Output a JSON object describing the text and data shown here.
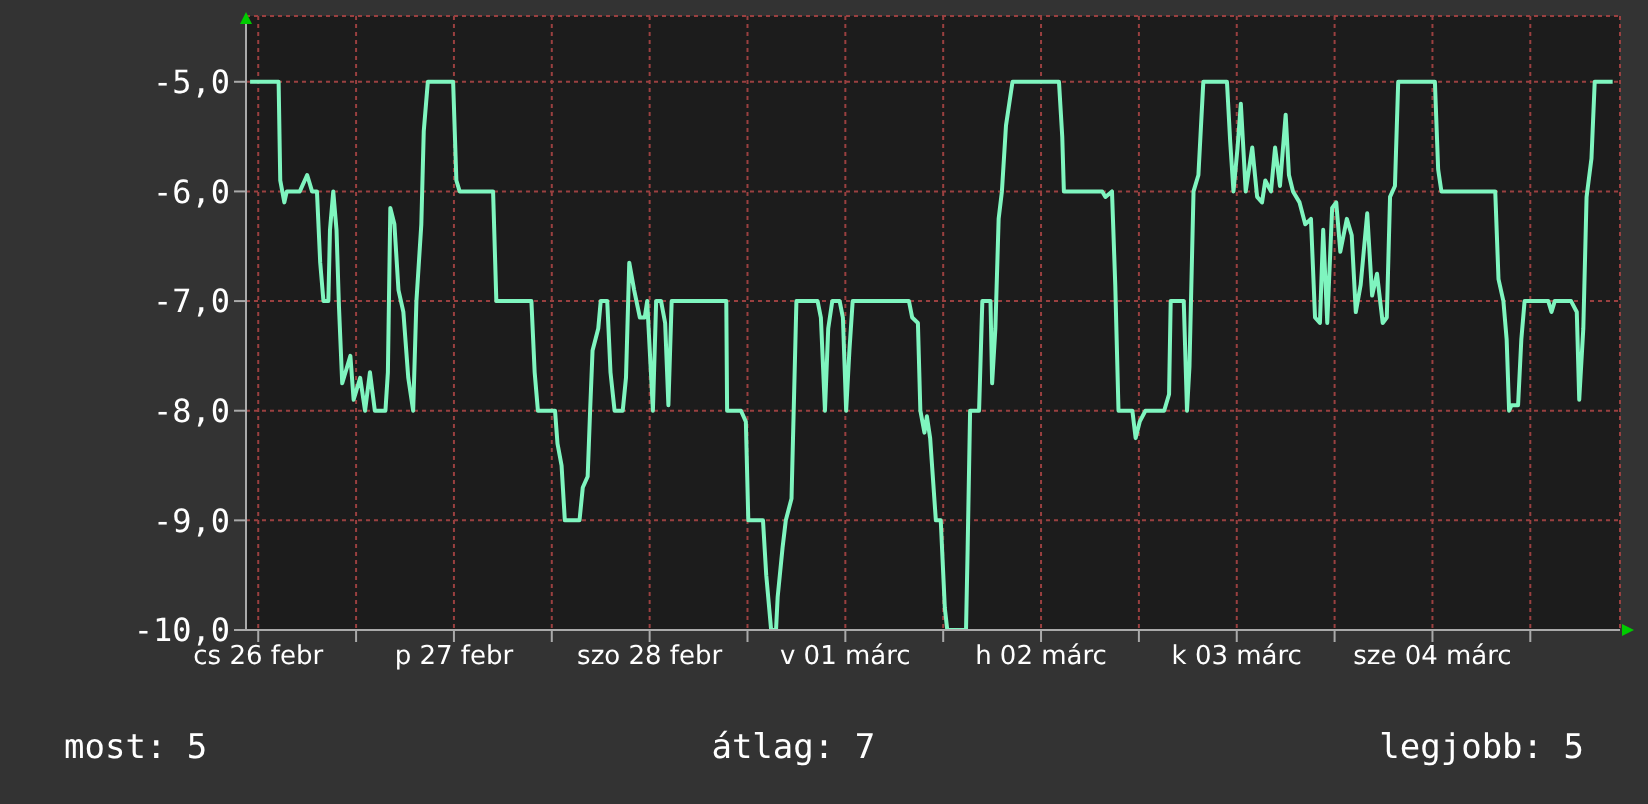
{
  "chart_data": {
    "type": "line",
    "color": "#7ff5bf",
    "grid": true,
    "xlim": [
      "--02-26T10:30",
      "--03-05T11:00"
    ],
    "ylim": [
      -10,
      -4.4
    ],
    "xticks": [
      {
        "value": "--02-26T12:00",
        "label": "cs 26 febr"
      },
      {
        "value": "--02-27T00:00",
        "label": null
      },
      {
        "value": "--02-27T12:00",
        "label": "p 27 febr"
      },
      {
        "value": "--02-28T00:00",
        "label": null
      },
      {
        "value": "--02-28T12:00",
        "label": "szo 28 febr"
      },
      {
        "value": "--03-01T00:00",
        "label": null
      },
      {
        "value": "--03-01T12:00",
        "label": "v 01 márc"
      },
      {
        "value": "--03-02T00:00",
        "label": null
      },
      {
        "value": "--03-02T12:00",
        "label": "h 02 márc"
      },
      {
        "value": "--03-03T00:00",
        "label": null
      },
      {
        "value": "--03-03T12:00",
        "label": "k 03 márc"
      },
      {
        "value": "--03-04T00:00",
        "label": null
      },
      {
        "value": "--03-04T12:00",
        "label": "sze 04 márc"
      },
      {
        "value": "--03-05T00:00",
        "label": null
      }
    ],
    "yticks": [
      {
        "value": -5,
        "label": "-5,0"
      },
      {
        "value": -6,
        "label": "-6,0"
      },
      {
        "value": -7,
        "label": "-7,0"
      },
      {
        "value": -8,
        "label": "-8,0"
      },
      {
        "value": -9,
        "label": "-9,0"
      },
      {
        "value": -10,
        "label": "-10,0"
      }
    ],
    "x": [
      "--02-26T11:00",
      "--02-26T14:30",
      "--02-26T14:42",
      "--02-26T15:12",
      "--02-26T15:30",
      "--02-26T17:06",
      "--02-26T18:00",
      "--02-26T18:36",
      "--02-26T19:12",
      "--02-26T19:36",
      "--02-26T20:00",
      "--02-26T20:36",
      "--02-26T20:48",
      "--02-26T21:12",
      "--02-26T21:36",
      "--02-26T21:54",
      "--02-26T22:18",
      "--02-26T23:18",
      "--02-26T23:42",
      "--02-27T00:30",
      "--02-27T01:06",
      "--02-27T01:42",
      "--02-27T02:18",
      "--02-27T03:36",
      "--02-27T03:54",
      "--02-27T04:12",
      "--02-27T04:42",
      "--02-27T05:12",
      "--02-27T05:48",
      "--02-27T06:24",
      "--02-27T07:00",
      "--02-27T07:24",
      "--02-27T08:00",
      "--02-27T08:18",
      "--02-27T08:48",
      "--02-27T11:54",
      "--02-27T12:18",
      "--02-27T12:42",
      "--02-27T16:48",
      "--02-27T17:12",
      "--02-27T21:30",
      "--02-27T21:54",
      "--02-27T22:18",
      "--02-28T00:24",
      "--02-28T00:42",
      "--02-28T01:12",
      "--02-28T01:36",
      "--02-28T03:24",
      "--02-28T03:48",
      "--02-28T04:24",
      "--02-28T04:42",
      "--02-28T05:00",
      "--02-28T05:42",
      "--02-28T06:00",
      "--02-28T06:48",
      "--02-28T07:12",
      "--02-28T07:42",
      "--02-28T08:42",
      "--02-28T09:06",
      "--02-28T09:30",
      "--02-28T10:06",
      "--02-28T10:48",
      "--02-28T11:24",
      "--02-28T11:42",
      "--02-28T12:24",
      "--02-28T12:48",
      "--02-28T13:24",
      "--02-28T13:54",
      "--02-28T14:18",
      "--02-28T14:42",
      "--02-28T21:24",
      "--02-28T21:30",
      "--02-28T23:12",
      "--02-28T23:48",
      "--03-01T00:06",
      "--03-01T01:54",
      "--03-01T02:18",
      "--03-01T02:54",
      "--03-01T03:30",
      "--03-01T03:42",
      "--03-01T04:18",
      "--03-01T04:42",
      "--03-01T05:24",
      "--03-01T06:00",
      "--03-01T08:36",
      "--03-01T09:00",
      "--03-01T09:30",
      "--03-01T09:54",
      "--03-01T10:24",
      "--03-01T11:18",
      "--03-01T11:42",
      "--03-01T12:06",
      "--03-01T12:30",
      "--03-01T12:54",
      "--03-01T19:48",
      "--03-01T20:12",
      "--03-01T20:54",
      "--03-01T21:12",
      "--03-01T21:42",
      "--03-01T22:00",
      "--03-01T22:24",
      "--03-01T23:06",
      "--03-01T23:42",
      "--03-02T00:12",
      "--03-02T00:30",
      "--03-02T02:48",
      "--03-02T03:00",
      "--03-02T03:18",
      "--03-02T04:24",
      "--03-02T04:48",
      "--03-02T05:48",
      "--03-02T06:00",
      "--03-02T06:24",
      "--03-02T06:48",
      "--03-02T07:12",
      "--03-02T07:42",
      "--03-02T08:30",
      "--03-02T14:12",
      "--03-02T14:36",
      "--03-02T14:48",
      "--03-02T19:30",
      "--03-02T19:54",
      "--03-02T20:42",
      "--03-02T21:06",
      "--03-02T21:30",
      "--03-02T23:12",
      "--03-02T23:36",
      "--03-03T00:06",
      "--03-03T00:48",
      "--03-03T03:06",
      "--03-03T03:42",
      "--03-03T03:54",
      "--03-03T05:30",
      "--03-03T05:54",
      "--03-03T06:12",
      "--03-03T06:42",
      "--03-03T07:18",
      "--03-03T07:54",
      "--03-03T10:48",
      "--03-03T11:12",
      "--03-03T11:36",
      "--03-03T12:06",
      "--03-03T12:30",
      "--03-03T13:06",
      "--03-03T13:54",
      "--03-03T14:30",
      "--03-03T15:06",
      "--03-03T15:30",
      "--03-03T16:12",
      "--03-03T16:42",
      "--03-03T17:18",
      "--03-03T18:00",
      "--03-03T18:24",
      "--03-03T18:54",
      "--03-03T19:42",
      "--03-03T20:24",
      "--03-03T21:06",
      "--03-03T21:36",
      "--03-03T22:12",
      "--03-03T22:36",
      "--03-03T23:06",
      "--03-03T23:42",
      "--03-04T00:12",
      "--03-04T00:42",
      "--03-04T01:30",
      "--03-04T02:06",
      "--03-04T02:36",
      "--03-04T03:12",
      "--03-04T04:00",
      "--03-04T04:36",
      "--03-04T05:12",
      "--03-04T05:54",
      "--03-04T06:24",
      "--03-04T06:48",
      "--03-04T07:24",
      "--03-04T07:48",
      "--03-04T12:18",
      "--03-04T12:42",
      "--03-04T13:06",
      "--03-04T19:42",
      "--03-04T20:06",
      "--03-04T20:42",
      "--03-04T21:06",
      "--03-04T21:24",
      "--03-04T21:42",
      "--03-04T22:30",
      "--03-04T22:54",
      "--03-04T23:18",
      "--03-05T02:12",
      "--03-05T02:36",
      "--03-05T03:00",
      "--03-05T05:00",
      "--03-05T05:42",
      "--03-05T06:00",
      "--03-05T06:30",
      "--03-05T06:54",
      "--03-05T07:30",
      "--03-05T07:54",
      "--03-05T10:06"
    ],
    "values": [
      -5,
      -5,
      -5.9,
      -6.1,
      -6,
      -6,
      -5.85,
      -6,
      -6,
      -6.65,
      -7,
      -7,
      -6.35,
      -6,
      -6.35,
      -7.05,
      -7.75,
      -7.5,
      -7.9,
      -7.7,
      -8,
      -7.65,
      -8,
      -8,
      -7.65,
      -6.15,
      -6.3,
      -6.9,
      -7.1,
      -7.7,
      -8,
      -7,
      -6.3,
      -5.45,
      -5,
      -5,
      -5.9,
      -6,
      -6,
      -7,
      -7,
      -7.65,
      -8,
      -8,
      -8.3,
      -8.5,
      -9,
      -9,
      -8.7,
      -8.6,
      -8,
      -7.45,
      -7.25,
      -7,
      -7,
      -7.65,
      -8,
      -8,
      -7.7,
      -6.65,
      -6.9,
      -7.15,
      -7.15,
      -7,
      -8,
      -7,
      -7,
      -7.2,
      -7.95,
      -7,
      -7,
      -8,
      -8,
      -8.1,
      -9,
      -9,
      -9.5,
      -10,
      -10,
      -9.7,
      -9.25,
      -9,
      -8.8,
      -7,
      -7,
      -7.15,
      -8,
      -7.25,
      -7,
      -7,
      -7.15,
      -8,
      -7.45,
      -7,
      -7,
      -7.15,
      -7.2,
      -8,
      -8.2,
      -8.05,
      -8.25,
      -9,
      -9,
      -9.8,
      -10,
      -10,
      -9.25,
      -8,
      -8,
      -7,
      -7,
      -7.75,
      -7.25,
      -6.25,
      -6,
      -5.4,
      -5,
      -5,
      -5.5,
      -6,
      -6,
      -6.05,
      -6,
      -6.85,
      -8,
      -8,
      -8.25,
      -8.1,
      -8,
      -8,
      -7.85,
      -7,
      -7,
      -8,
      -7.6,
      -6,
      -5.85,
      -5,
      -5,
      -5.55,
      -6,
      -5.6,
      -5.2,
      -6,
      -5.6,
      -6.05,
      -6.1,
      -5.9,
      -6,
      -5.6,
      -5.95,
      -5.3,
      -5.85,
      -6,
      -6.1,
      -6.3,
      -6.25,
      -7.15,
      -7.2,
      -6.35,
      -7.2,
      -6.15,
      -6.1,
      -6.55,
      -6.25,
      -6.4,
      -7.1,
      -6.85,
      -6.2,
      -6.95,
      -6.75,
      -7.2,
      -7.15,
      -6.05,
      -5.95,
      -5,
      -5,
      -5.8,
      -6,
      -6,
      -6.8,
      -7,
      -7.35,
      -8,
      -7.95,
      -7.95,
      -7.35,
      -7,
      -7,
      -7.1,
      -7,
      -7,
      -7.1,
      -7.9,
      -7.25,
      -6.05,
      -5.7,
      -5,
      -5
    ],
    "annotations": [
      "most: 5",
      "átlag: 7",
      "legjobb: 5"
    ]
  }
}
